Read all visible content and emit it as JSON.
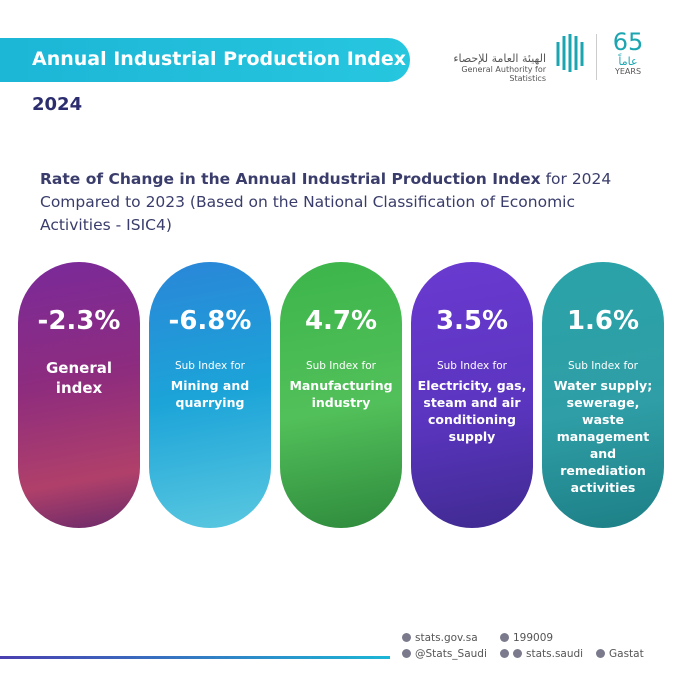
{
  "header": {
    "title": "Annual Industrial Production Index",
    "year": "2024",
    "org_arabic": "الهيئة العامة للإحصاء",
    "org_english": "General Authority for Statistics",
    "anniversary_number": "65",
    "anniversary_arabic": "عاماً",
    "anniversary_english": "YEARS"
  },
  "subtitle": {
    "bold": "Rate of Change in the Annual Industrial Production Index",
    "regular": " for 2024 Compared to 2023 (Based on the National Classification of Economic Activities - ISIC4)"
  },
  "cards": [
    {
      "value": "-2.3%",
      "label": "General index"
    },
    {
      "value": "-6.8%",
      "prefix": "Sub Index for",
      "label": "Mining and quarrying"
    },
    {
      "value": "4.7%",
      "prefix": "Sub Index for",
      "label": "Manufacturing industry"
    },
    {
      "value": "3.5%",
      "prefix": "Sub Index for",
      "label": "Electricity, gas, steam and air conditioning supply"
    },
    {
      "value": "1.6%",
      "prefix": "Sub Index for",
      "label": "Water supply; sewerage, waste management and remediation activities"
    }
  ],
  "footer": {
    "website": "stats.gov.sa",
    "phone": "199009",
    "twitter": "@Stats_Saudi",
    "facebook_instagram": "stats.saudi",
    "linkedin": "Gastat"
  }
}
